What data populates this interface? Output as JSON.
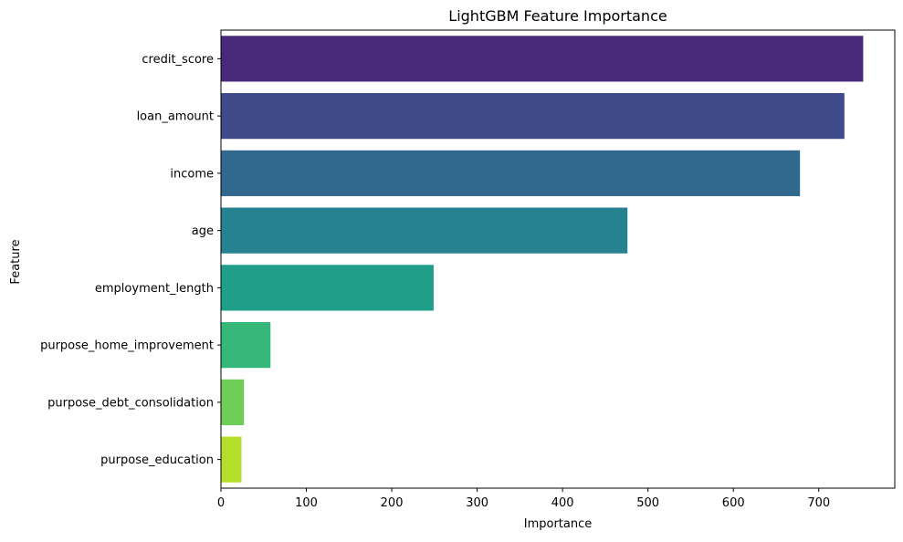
{
  "chart_data": {
    "type": "bar",
    "orientation": "horizontal",
    "title": "LightGBM Feature Importance",
    "xlabel": "Importance",
    "ylabel": "Feature",
    "categories": [
      "credit_score",
      "loan_amount",
      "income",
      "age",
      "employment_length",
      "purpose_home_improvement",
      "purpose_debt_consolidation",
      "purpose_education"
    ],
    "values": [
      752,
      730,
      678,
      476,
      249,
      58,
      27,
      24
    ],
    "colors": [
      "#482878",
      "#3e4a89",
      "#31688e",
      "#26828e",
      "#1f9e89",
      "#35b779",
      "#6ece58",
      "#b5de2b"
    ],
    "xticks": [
      0,
      100,
      200,
      300,
      400,
      500,
      600,
      700
    ],
    "xlim": [
      0,
      789
    ],
    "grid": false,
    "legend": "none"
  }
}
